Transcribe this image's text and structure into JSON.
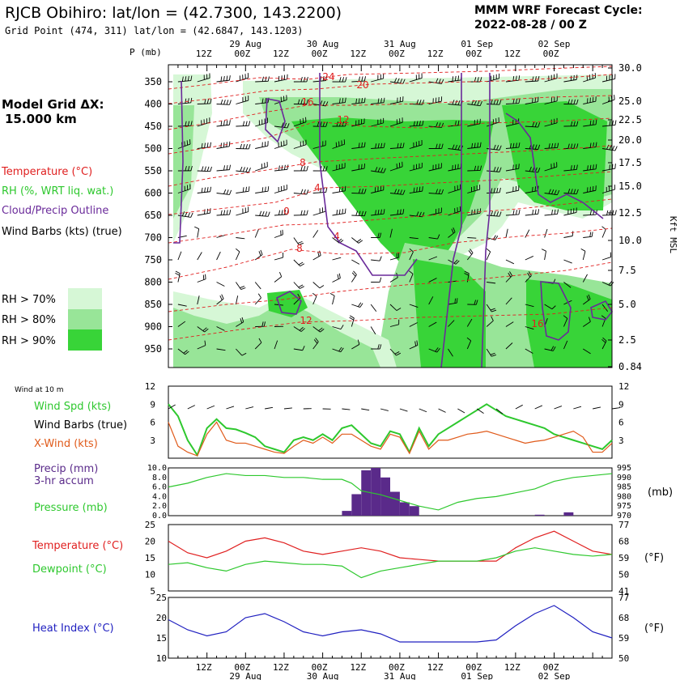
{
  "header": {
    "title": "RJCB Obihiro:  lat/lon = (42.7300, 143.2200)",
    "subtitle": "Grid Point (474, 311) lat/lon = (42.6847, 143.1203)",
    "cycle_line1": "MMM WRF Forecast Cycle:",
    "cycle_line2": "2022-08-28 / 00  Z"
  },
  "model": {
    "grid_label": "Model Grid ΔX:",
    "grid_value": "15.000 km"
  },
  "time_axis": {
    "hour_labels": [
      "12Z",
      "00Z",
      "12Z",
      "00Z",
      "12Z",
      "00Z",
      "12Z",
      "00Z",
      "12Z",
      "00Z"
    ],
    "day_labels": [
      "29 Aug",
      "30 Aug",
      "31 Aug",
      "01 Sep",
      "02 Sep"
    ]
  },
  "colors": {
    "temperature": "#e02020",
    "rh": "#2ec82e",
    "cloud": "#6a2a9a",
    "rh70": "#d6f7d6",
    "rh80": "#98e598",
    "rh90": "#38d438",
    "wind_speed": "#2ec82e",
    "xwind": "#e05a1a",
    "precip": "#5a2a8a",
    "pressure": "#2ec82e",
    "temp2m": "#e02020",
    "dewpoint": "#2ec82e",
    "heat_index": "#2020c0"
  },
  "legend": {
    "temperature": "Temperature (°C)",
    "rh": "RH (%, WRT liq. wat.)",
    "cloud": "Cloud/Precip Outline",
    "barbs": "Wind Barbs (kts) (true)",
    "rh70": "RH > 70%",
    "rh80": "RH > 80%",
    "rh90": "RH > 90%"
  },
  "chart_data": [
    {
      "type": "heatmap",
      "name": "vertical cross-section",
      "ylabel": "P (mb)",
      "ylabel_right": "Kft MSL",
      "pressure_ticks": [
        "350",
        "400",
        "450",
        "500",
        "550",
        "600",
        "650",
        "700",
        "750",
        "800",
        "850",
        "900",
        "950"
      ],
      "height_ticks": [
        "30.0",
        "25.0",
        "22.5",
        "20.0",
        "17.5",
        "15.0",
        "12.5",
        "10.0",
        "7.5",
        "5.0",
        "2.5",
        "0.84"
      ],
      "temperature_contour_labels": [
        "24",
        "20",
        "16",
        "12",
        "8",
        "4",
        "0",
        "4",
        "8",
        "12",
        "16"
      ]
    },
    {
      "type": "line",
      "name": "wind at 10 m",
      "panel_label": "Wind at 10 m",
      "legend_speed": "Wind Spd (kts)",
      "legend_barbs": "Wind Barbs (true)",
      "legend_xwind": "X-Wind (kts)",
      "y_ticks": [
        "12",
        "9",
        "6",
        "3"
      ],
      "ylim": [
        0,
        12
      ],
      "x_hours": [
        0,
        3,
        6,
        9,
        12,
        15,
        18,
        21,
        24,
        27,
        30,
        33,
        36,
        39,
        42,
        45,
        48,
        51,
        54,
        57,
        60,
        63,
        66,
        69,
        72,
        75,
        78,
        81,
        84,
        87,
        90,
        93,
        96,
        99,
        102,
        105,
        108,
        111,
        114,
        117,
        120,
        123,
        126,
        129,
        132,
        135,
        138
      ],
      "series": [
        {
          "name": "Wind Spd (kts)",
          "values": [
            9,
            7,
            3,
            0.5,
            5,
            6.5,
            5,
            4.8,
            4.2,
            3.5,
            2,
            1.5,
            1,
            3,
            3.5,
            3,
            4,
            3,
            5,
            5.5,
            4,
            2.5,
            2,
            4.5,
            4,
            1,
            5,
            2,
            4,
            5,
            6,
            7,
            8,
            9,
            8,
            7,
            6.5,
            6,
            5.5,
            5,
            4,
            3.5,
            3,
            2.5,
            2,
            1.5,
            3
          ]
        },
        {
          "name": "X-Wind (kts)",
          "values": [
            6,
            2,
            1,
            0.4,
            4,
            6,
            3,
            2.5,
            2.5,
            2,
            1.5,
            1,
            0.8,
            2,
            3,
            2.5,
            3.5,
            2.5,
            4,
            4,
            3,
            2,
            1.5,
            4,
            3.5,
            0.8,
            4.5,
            1.5,
            3,
            3,
            3.5,
            4,
            4.2,
            4.5,
            4,
            3.5,
            3,
            2.5,
            2.8,
            3,
            3.5,
            4,
            4.5,
            3.5,
            1,
            1,
            2.5
          ]
        }
      ]
    },
    {
      "type": "bar",
      "name": "precip and pressure",
      "legend_precip_line1": "Precip (mm)",
      "legend_precip_line2": "3-hr accum",
      "legend_pressure": "Pressure (mb)",
      "precip_ticks": [
        "10.0",
        "8.0",
        "6.0",
        "4.0",
        "2.0",
        "0.0"
      ],
      "pressure_ticks": [
        "995",
        "990",
        "985",
        "980",
        "975",
        "970"
      ],
      "pressure_unit": "(mb)",
      "precip_ylim": [
        0,
        10
      ],
      "pressure_ylim": [
        970,
        995
      ],
      "precip_bars": [
        {
          "hour": 57,
          "value": 1
        },
        {
          "hour": 60,
          "value": 4.5
        },
        {
          "hour": 63,
          "value": 9.5
        },
        {
          "hour": 66,
          "value": 10
        },
        {
          "hour": 69,
          "value": 8
        },
        {
          "hour": 72,
          "value": 5
        },
        {
          "hour": 75,
          "value": 2.8
        },
        {
          "hour": 78,
          "value": 2
        },
        {
          "hour": 117,
          "value": 0.2
        },
        {
          "hour": 126,
          "value": 0.7
        }
      ],
      "pressure_series": {
        "name": "Pressure (mb)",
        "x_hours": [
          0,
          6,
          12,
          18,
          24,
          30,
          36,
          42,
          48,
          54,
          57,
          60,
          66,
          72,
          78,
          84,
          90,
          96,
          102,
          108,
          114,
          120,
          126,
          132,
          138
        ],
        "values": [
          985,
          987,
          990,
          992,
          991,
          991,
          990,
          990,
          989,
          989,
          987,
          983,
          981,
          978,
          975,
          973,
          977,
          979,
          980,
          982,
          984,
          988,
          990,
          991,
          992
        ]
      }
    },
    {
      "type": "line",
      "name": "temperature and dewpoint",
      "legend_temp": "Temperature (°C)",
      "legend_dew": "Dewpoint (°C)",
      "c_ticks": [
        "25",
        "20",
        "15",
        "10",
        "5"
      ],
      "f_ticks": [
        "77",
        "68",
        "59",
        "50",
        "41"
      ],
      "f_unit": "(°F)",
      "ylim": [
        5,
        25
      ],
      "x_hours": [
        0,
        6,
        12,
        18,
        24,
        30,
        36,
        42,
        48,
        54,
        60,
        66,
        72,
        78,
        84,
        90,
        96,
        102,
        108,
        114,
        120,
        126,
        132,
        138
      ],
      "series": [
        {
          "name": "Temperature (°C)",
          "values": [
            20,
            16.5,
            15,
            17,
            20,
            21,
            19.5,
            17,
            16,
            17,
            18,
            17,
            15,
            14.5,
            14,
            14,
            14,
            14,
            18,
            21,
            23,
            20,
            17,
            16
          ]
        },
        {
          "name": "Dewpoint (°C)",
          "values": [
            13,
            13.5,
            12,
            11,
            13,
            14,
            13.5,
            13,
            13,
            12.5,
            9,
            11,
            12,
            13,
            14,
            14,
            14,
            15,
            17,
            18,
            17,
            16,
            15.5,
            16
          ]
        }
      ]
    },
    {
      "type": "line",
      "name": "heat index",
      "legend": "Heat Index (°C)",
      "c_ticks": [
        "25",
        "20",
        "15",
        "10"
      ],
      "f_ticks": [
        "77",
        "68",
        "59",
        "50"
      ],
      "f_unit": "(°F)",
      "ylim": [
        10,
        25
      ],
      "x_hours": [
        0,
        6,
        12,
        18,
        24,
        30,
        36,
        42,
        48,
        54,
        60,
        66,
        72,
        78,
        84,
        90,
        96,
        102,
        108,
        114,
        120,
        126,
        132,
        138
      ],
      "series": [
        {
          "name": "Heat Index (°C)",
          "values": [
            19.5,
            17,
            15.5,
            16.5,
            20,
            21,
            19,
            16.5,
            15.5,
            16.5,
            17,
            16,
            14,
            14,
            14,
            14,
            14,
            14.5,
            18,
            21,
            23,
            20,
            16.5,
            15
          ]
        }
      ]
    }
  ]
}
